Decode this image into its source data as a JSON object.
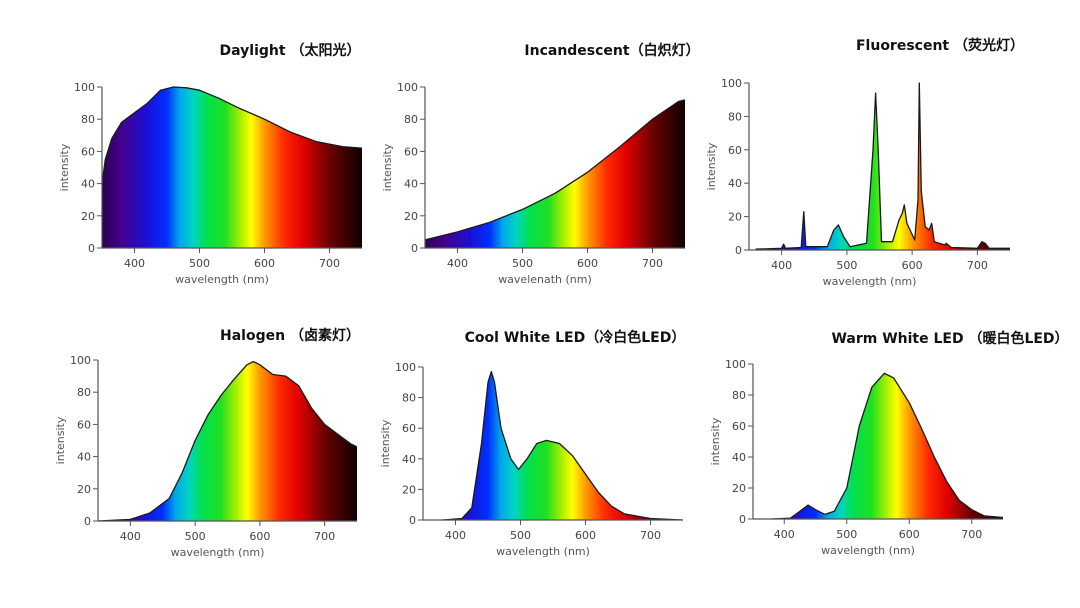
{
  "chart_data": [
    {
      "type": "area",
      "title": "Daylight （太阳光）",
      "xlabel": "wavelength (nm)",
      "ylabel": "intensity",
      "xlim": [
        350,
        750
      ],
      "ylim": [
        0,
        100
      ],
      "xticks": [
        400,
        500,
        600,
        700
      ],
      "yticks": [
        0,
        20,
        40,
        60,
        80,
        100
      ],
      "fill": "spectral gradient",
      "grid": false,
      "points": [
        [
          350,
          40
        ],
        [
          355,
          55
        ],
        [
          365,
          68
        ],
        [
          380,
          78
        ],
        [
          400,
          84
        ],
        [
          420,
          90
        ],
        [
          440,
          98
        ],
        [
          460,
          100
        ],
        [
          480,
          99.5
        ],
        [
          500,
          98
        ],
        [
          530,
          93
        ],
        [
          560,
          87
        ],
        [
          600,
          80
        ],
        [
          640,
          72
        ],
        [
          680,
          66
        ],
        [
          720,
          63
        ],
        [
          750,
          62
        ]
      ]
    },
    {
      "type": "area",
      "title": "Incandescent（白炽灯）",
      "xlabel": "wavelenath (nm)",
      "ylabel": "intensity",
      "xlim": [
        350,
        750
      ],
      "ylim": [
        0,
        100
      ],
      "xticks": [
        400,
        500,
        600,
        700
      ],
      "yticks": [
        0,
        20,
        40,
        60,
        80,
        100
      ],
      "fill": "spectral gradient",
      "grid": false,
      "points": [
        [
          350,
          5
        ],
        [
          400,
          10
        ],
        [
          450,
          16
        ],
        [
          500,
          24
        ],
        [
          550,
          34
        ],
        [
          600,
          47
        ],
        [
          650,
          63
        ],
        [
          700,
          80
        ],
        [
          740,
          91
        ],
        [
          750,
          92
        ]
      ]
    },
    {
      "type": "area",
      "title": "Fluorescent （荧光灯）",
      "xlabel": "wavelength (nm)",
      "ylabel": "intensity",
      "xlim": [
        350,
        750
      ],
      "ylim": [
        0,
        100
      ],
      "xticks": [
        400,
        500,
        600,
        700
      ],
      "yticks": [
        0,
        20,
        40,
        60,
        80,
        100
      ],
      "fill": "spectral gradient",
      "grid": false,
      "points": [
        [
          360,
          0.5
        ],
        [
          400,
          1
        ],
        [
          403,
          3.5
        ],
        [
          406,
          1
        ],
        [
          430,
          1.5
        ],
        [
          434,
          23
        ],
        [
          437,
          2
        ],
        [
          470,
          2
        ],
        [
          480,
          12
        ],
        [
          487,
          15
        ],
        [
          495,
          8
        ],
        [
          505,
          2
        ],
        [
          530,
          4
        ],
        [
          540,
          60
        ],
        [
          544,
          94
        ],
        [
          548,
          60
        ],
        [
          553,
          5
        ],
        [
          570,
          5
        ],
        [
          580,
          18
        ],
        [
          585,
          22
        ],
        [
          588,
          27
        ],
        [
          592,
          16
        ],
        [
          598,
          11
        ],
        [
          604,
          6
        ],
        [
          609,
          30
        ],
        [
          611,
          100
        ],
        [
          614,
          35
        ],
        [
          620,
          14
        ],
        [
          626,
          12
        ],
        [
          630,
          16
        ],
        [
          634,
          5
        ],
        [
          650,
          3
        ],
        [
          652,
          4
        ],
        [
          660,
          1.5
        ],
        [
          700,
          1
        ],
        [
          707,
          5
        ],
        [
          712,
          4
        ],
        [
          718,
          1
        ],
        [
          750,
          1
        ]
      ]
    },
    {
      "type": "area",
      "title": "Halogen （卤素灯）",
      "xlabel": "wavelength (nm)",
      "ylabel": "intensity",
      "xlim": [
        350,
        750
      ],
      "ylim": [
        0,
        100
      ],
      "xticks": [
        400,
        500,
        600,
        700
      ],
      "yticks": [
        0,
        20,
        40,
        60,
        80,
        100
      ],
      "fill": "spectral gradient",
      "grid": false,
      "points": [
        [
          350,
          0
        ],
        [
          400,
          1
        ],
        [
          430,
          5
        ],
        [
          460,
          14
        ],
        [
          480,
          30
        ],
        [
          500,
          50
        ],
        [
          520,
          66
        ],
        [
          540,
          78
        ],
        [
          560,
          88
        ],
        [
          580,
          97
        ],
        [
          590,
          99
        ],
        [
          600,
          97
        ],
        [
          620,
          91
        ],
        [
          640,
          90
        ],
        [
          660,
          84
        ],
        [
          680,
          70
        ],
        [
          700,
          60
        ],
        [
          720,
          54
        ],
        [
          740,
          48
        ],
        [
          750,
          46
        ]
      ]
    },
    {
      "type": "area",
      "title": "Cool White LED（冷白色LED）",
      "xlabel": "wavelength (nm)",
      "ylabel": "intensity",
      "xlim": [
        350,
        750
      ],
      "ylim": [
        0,
        100
      ],
      "xticks": [
        400,
        500,
        600,
        700
      ],
      "yticks": [
        0,
        20,
        40,
        60,
        80,
        100
      ],
      "fill": "spectral gradient",
      "grid": false,
      "points": [
        [
          380,
          0
        ],
        [
          410,
          1
        ],
        [
          425,
          8
        ],
        [
          440,
          50
        ],
        [
          450,
          90
        ],
        [
          455,
          97
        ],
        [
          460,
          90
        ],
        [
          470,
          60
        ],
        [
          485,
          40
        ],
        [
          497,
          33
        ],
        [
          510,
          40
        ],
        [
          525,
          50
        ],
        [
          540,
          52
        ],
        [
          560,
          50
        ],
        [
          580,
          42
        ],
        [
          600,
          30
        ],
        [
          620,
          18
        ],
        [
          640,
          9
        ],
        [
          660,
          4
        ],
        [
          700,
          1
        ],
        [
          750,
          0
        ]
      ]
    },
    {
      "type": "area",
      "title": "Warm White LED （暖白色LED）",
      "xlabel": "wavelength (nm)",
      "ylabel": "intensity",
      "xlim": [
        350,
        750
      ],
      "ylim": [
        0,
        100
      ],
      "xticks": [
        400,
        500,
        600,
        700
      ],
      "yticks": [
        0,
        20,
        40,
        60,
        80,
        100
      ],
      "fill": "spectral gradient",
      "grid": false,
      "points": [
        [
          380,
          0
        ],
        [
          410,
          0.5
        ],
        [
          425,
          5
        ],
        [
          438,
          9
        ],
        [
          450,
          6
        ],
        [
          465,
          3
        ],
        [
          480,
          5
        ],
        [
          500,
          20
        ],
        [
          520,
          60
        ],
        [
          540,
          85
        ],
        [
          560,
          94
        ],
        [
          575,
          91
        ],
        [
          600,
          75
        ],
        [
          620,
          58
        ],
        [
          640,
          40
        ],
        [
          660,
          24
        ],
        [
          680,
          12
        ],
        [
          700,
          6
        ],
        [
          720,
          2
        ],
        [
          750,
          1
        ]
      ]
    }
  ],
  "spectrum_colors": [
    [
      350,
      "#2a0050"
    ],
    [
      380,
      "#45008f"
    ],
    [
      420,
      "#1a10d8"
    ],
    [
      450,
      "#0030ff"
    ],
    [
      470,
      "#00a8e8"
    ],
    [
      490,
      "#00d4c4"
    ],
    [
      510,
      "#00e050"
    ],
    [
      540,
      "#20e020"
    ],
    [
      565,
      "#b0f000"
    ],
    [
      580,
      "#ffff00"
    ],
    [
      600,
      "#ff9a00"
    ],
    [
      630,
      "#ff2a00"
    ],
    [
      660,
      "#e00000"
    ],
    [
      700,
      "#6a0000"
    ],
    [
      750,
      "#100000"
    ]
  ],
  "curve_color": "#1a1a1a"
}
